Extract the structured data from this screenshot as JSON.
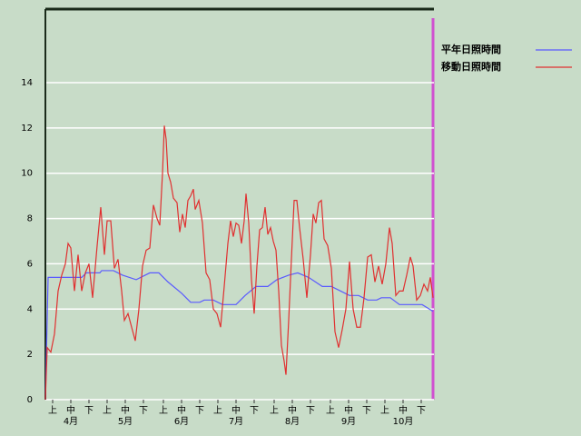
{
  "chart_data": {
    "type": "line",
    "xlim": [
      0,
      214
    ],
    "xticks": [
      {
        "value": 4,
        "label": "上"
      },
      {
        "value": 14,
        "label": "中"
      },
      {
        "value": 24,
        "label": "下"
      },
      {
        "value": 34,
        "label": "上"
      },
      {
        "value": 44,
        "label": "中"
      },
      {
        "value": 54,
        "label": "下"
      },
      {
        "value": 65,
        "label": "上"
      },
      {
        "value": 75,
        "label": "中"
      },
      {
        "value": 85,
        "label": "下"
      },
      {
        "value": 95,
        "label": "上"
      },
      {
        "value": 105,
        "label": "中"
      },
      {
        "value": 115,
        "label": "下"
      },
      {
        "value": 126,
        "label": "上"
      },
      {
        "value": 136,
        "label": "中"
      },
      {
        "value": 146,
        "label": "下"
      },
      {
        "value": 157,
        "label": "上"
      },
      {
        "value": 167,
        "label": "中"
      },
      {
        "value": 177,
        "label": "下"
      },
      {
        "value": 187,
        "label": "上"
      },
      {
        "value": 197,
        "label": "中"
      },
      {
        "value": 207,
        "label": "下"
      }
    ],
    "month_labels": [
      {
        "value": 14,
        "label": "4月"
      },
      {
        "value": 44,
        "label": "5月"
      },
      {
        "value": 75,
        "label": "6月"
      },
      {
        "value": 105,
        "label": "7月"
      },
      {
        "value": 136,
        "label": "8月"
      },
      {
        "value": 167,
        "label": "9月"
      },
      {
        "value": 197,
        "label": "10月"
      }
    ],
    "ylim": [
      0,
      17.25
    ],
    "yticks": [
      0,
      2,
      4,
      6,
      8,
      10,
      12,
      14
    ],
    "grid": true,
    "legend": "top-right",
    "series": [
      {
        "name": "平年日照時間",
        "color": "#5a5aff",
        "x": [
          0,
          1.5,
          20,
          22.5,
          30,
          31,
          37.5,
          42.5,
          50,
          57.5,
          62.5,
          67.5,
          75,
          80,
          85,
          87.5,
          92.5,
          97.5,
          105,
          110,
          116,
          122.5,
          127.5,
          134,
          139,
          145,
          152.5,
          157.5,
          162.5,
          167.5,
          172.5,
          177.5,
          182.5,
          185,
          190,
          195,
          200,
          202.5,
          207.5,
          213.5
        ],
        "values": [
          0,
          5.4,
          5.4,
          5.6,
          5.6,
          5.7,
          5.7,
          5.5,
          5.3,
          5.6,
          5.6,
          5.2,
          4.7,
          4.3,
          4.3,
          4.4,
          4.4,
          4.2,
          4.2,
          4.6,
          5.0,
          5.0,
          5.3,
          5.5,
          5.6,
          5.4,
          5.0,
          5.0,
          4.8,
          4.6,
          4.6,
          4.4,
          4.4,
          4.5,
          4.5,
          4.2,
          4.2,
          4.2,
          4.2,
          3.9
        ]
      },
      {
        "name": "移動日照時間",
        "color": "#e03030",
        "x": [
          0,
          1,
          3,
          5,
          7,
          9,
          11,
          12.5,
          14,
          16,
          18,
          20,
          22,
          24,
          26,
          28.5,
          30.5,
          32.5,
          34,
          36,
          38,
          40,
          42,
          43.5,
          45.5,
          47.5,
          49.5,
          51.5,
          53.5,
          55.5,
          57.5,
          59.5,
          61.5,
          63,
          64.5,
          65.5,
          66.5,
          67.5,
          69,
          70.5,
          72.5,
          74,
          75.5,
          77,
          78.5,
          80,
          81.5,
          82.5,
          84.5,
          86.5,
          88.5,
          90.5,
          92.5,
          94.5,
          96.5,
          98.5,
          100.5,
          102,
          103.5,
          105,
          106.5,
          108,
          109.5,
          110.5,
          112,
          113.5,
          115,
          116.5,
          118,
          119.5,
          121,
          122.5,
          124,
          125.5,
          127,
          128.5,
          130,
          131.5,
          132.5,
          134,
          135.5,
          137,
          138.5,
          140,
          142,
          144,
          146,
          147.5,
          149,
          150.5,
          152,
          153.5,
          155.5,
          157.5,
          159.5,
          161.5,
          163.5,
          165.5,
          167.5,
          169.5,
          171.5,
          173.5,
          175.5,
          177.5,
          179.5,
          181.5,
          183.5,
          185.5,
          187.5,
          189.5,
          191,
          193,
          195,
          197,
          199,
          201,
          202.5,
          204.5,
          206.5,
          208.5,
          210.5,
          212,
          213.5
        ],
        "values": [
          0,
          2.3,
          2.1,
          2.9,
          4.8,
          5.5,
          6.0,
          6.9,
          6.7,
          4.8,
          6.4,
          4.8,
          5.6,
          6.0,
          4.5,
          6.8,
          8.5,
          6.4,
          7.9,
          7.9,
          5.8,
          6.2,
          4.8,
          3.5,
          3.8,
          3.2,
          2.6,
          4.0,
          5.9,
          6.6,
          6.7,
          8.6,
          8.0,
          7.7,
          10.0,
          12.1,
          11.5,
          10.0,
          9.6,
          8.9,
          8.7,
          7.4,
          8.2,
          7.6,
          8.8,
          9.0,
          9.3,
          8.4,
          8.8,
          7.8,
          5.6,
          5.3,
          4.0,
          3.8,
          3.2,
          5.0,
          6.9,
          7.9,
          7.2,
          7.8,
          7.7,
          6.9,
          7.9,
          9.1,
          7.8,
          5.3,
          3.8,
          5.9,
          7.5,
          7.6,
          8.5,
          7.3,
          7.6,
          7.0,
          6.6,
          4.8,
          2.4,
          1.7,
          1.1,
          3.5,
          6.2,
          8.8,
          8.8,
          7.6,
          6.2,
          4.5,
          6.4,
          8.2,
          7.8,
          8.7,
          8.8,
          7.1,
          6.8,
          5.8,
          3.0,
          2.3,
          3.1,
          4.0,
          6.1,
          4.0,
          3.2,
          3.2,
          4.5,
          6.3,
          6.4,
          5.2,
          5.9,
          5.1,
          6.0,
          7.6,
          6.9,
          4.6,
          4.8,
          4.8,
          5.5,
          6.3,
          5.9,
          4.4,
          4.6,
          5.1,
          4.8,
          5.4,
          4.5
        ]
      }
    ]
  }
}
